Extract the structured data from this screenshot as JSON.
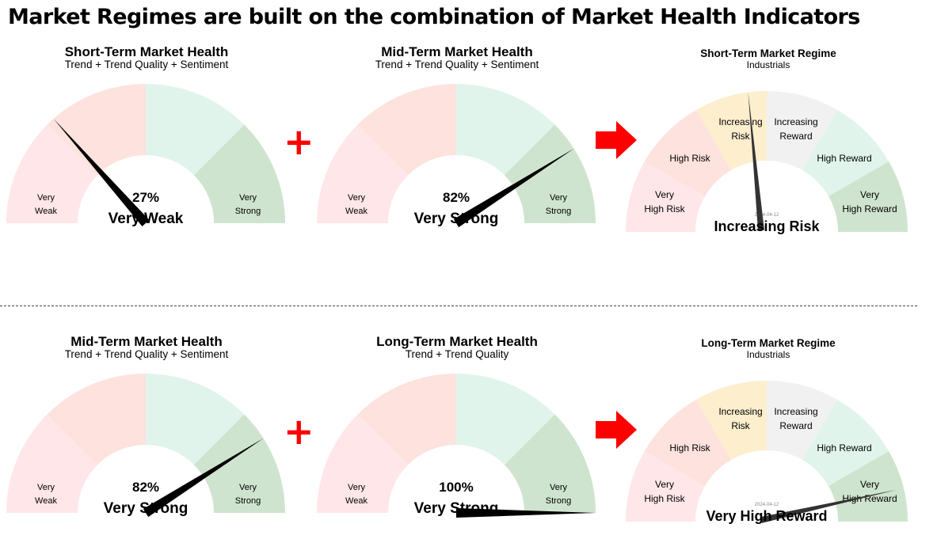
{
  "main_title": "Market Regimes are built on the combination of Market Health Indicators",
  "colors": {
    "health_zones": [
      "#ffe6e9",
      "#fde2dd",
      "#e0f4ec",
      "#cfe4ce"
    ],
    "regime_zones": [
      "#ffe6e9",
      "#fde2dd",
      "#fdeece",
      "#f1f1f1",
      "#e0f4ec",
      "#cfe4ce"
    ],
    "needle": "#000000",
    "regime_needle": "#333333",
    "plus": "#ff0000",
    "arrow": "#ff0000"
  },
  "symbols": {
    "plus": "+",
    "arrow_icon": "right-arrow-icon"
  },
  "health_labels": {
    "low_line1": "Very",
    "low_line2": "Weak",
    "high_line1": "Very",
    "high_line2": "Strong"
  },
  "rows": [
    {
      "health": [
        {
          "title": "Short-Term Market Health",
          "subtitle": "Trend + Trend Quality + Sentiment",
          "value": 27,
          "value_text": "27%",
          "status": "Very Weak"
        },
        {
          "title": "Mid-Term Market Health",
          "subtitle": "Trend + Trend Quality + Sentiment",
          "value": 82,
          "value_text": "82%",
          "status": "Very Strong"
        }
      ],
      "regime": {
        "title": "Short-Term Market Regime",
        "subtitle": "Industrials",
        "date": "2024-04-12",
        "needle_value": 0.47,
        "status": "Increasing Risk",
        "zones": [
          {
            "line1": "Very",
            "line2": "High Risk"
          },
          {
            "line1": "High Risk",
            "line2": ""
          },
          {
            "line1": "Increasing",
            "line2": "Risk"
          },
          {
            "line1": "Increasing",
            "line2": "Reward"
          },
          {
            "line1": "High Reward",
            "line2": ""
          },
          {
            "line1": "Very",
            "line2": "High Reward"
          }
        ]
      }
    },
    {
      "health": [
        {
          "title": "Mid-Term Market Health",
          "subtitle": "Trend + Trend Quality + Sentiment",
          "value": 82,
          "value_text": "82%",
          "status": "Very Strong"
        },
        {
          "title": "Long-Term Market Health",
          "subtitle": "Trend + Trend Quality",
          "value": 100,
          "value_text": "100%",
          "status": "Very Strong"
        }
      ],
      "regime": {
        "title": "Long-Term Market Regime",
        "subtitle": "Industrials",
        "date": "2024-04-12",
        "needle_value": 0.93,
        "status": "Very High Reward",
        "zones": [
          {
            "line1": "Very",
            "line2": "High Risk"
          },
          {
            "line1": "High Risk",
            "line2": ""
          },
          {
            "line1": "Increasing",
            "line2": "Risk"
          },
          {
            "line1": "Increasing",
            "line2": "Reward"
          },
          {
            "line1": "High Reward",
            "line2": ""
          },
          {
            "line1": "Very",
            "line2": "High Reward"
          }
        ]
      }
    }
  ]
}
